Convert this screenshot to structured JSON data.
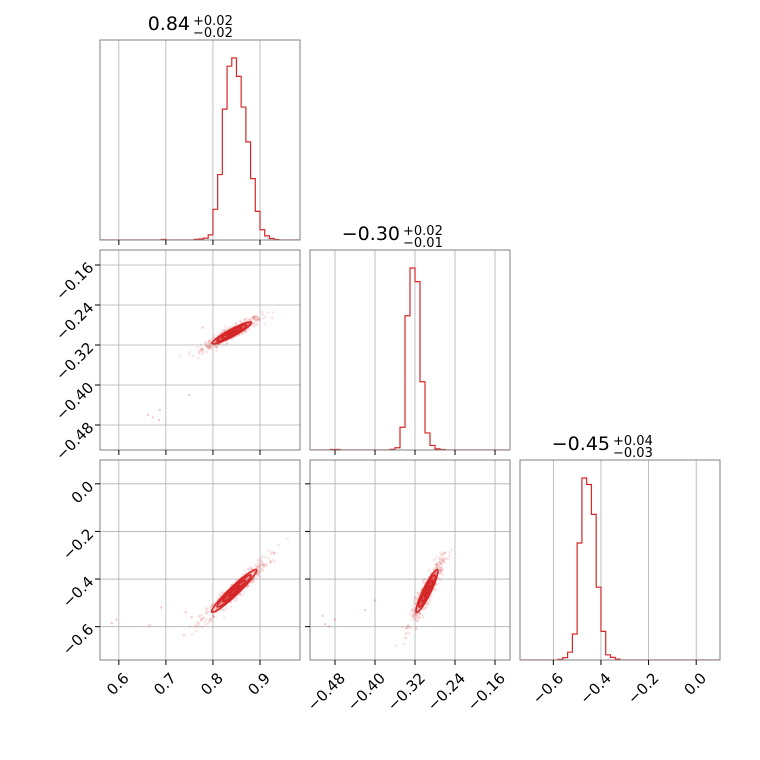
{
  "chart_data": {
    "type": "corner",
    "color": "#d62728",
    "n_params": 3,
    "parameters": [
      {
        "title": {
          "median": "0.84",
          "plus": "+0.02",
          "minus": "−0.02"
        },
        "range": [
          0.56,
          0.985
        ],
        "ticks": [
          0.6,
          0.7,
          0.8,
          0.9
        ],
        "tick_labels": [
          "0.6",
          "0.7",
          "0.8",
          "0.9"
        ]
      },
      {
        "title": {
          "median": "−0.30",
          "plus": "+0.02",
          "minus": "−0.01"
        },
        "range": [
          -0.53,
          -0.13
        ],
        "ticks": [
          -0.48,
          -0.4,
          -0.32,
          -0.24,
          -0.16
        ],
        "tick_labels": [
          "−0.48",
          "−0.40",
          "−0.32",
          "−0.24",
          "−0.16"
        ]
      },
      {
        "title": {
          "median": "−0.45",
          "plus": "+0.04",
          "minus": "−0.03"
        },
        "range": [
          -0.74,
          0.1
        ],
        "ticks": [
          -0.6,
          -0.4,
          -0.2,
          0.0
        ],
        "tick_labels": [
          "−0.6",
          "−0.4",
          "−0.2",
          "0.0"
        ]
      }
    ],
    "histograms": [
      {
        "bin_edges": [
          0.56,
          0.57,
          0.58,
          0.59,
          0.6,
          0.61,
          0.62,
          0.63,
          0.64,
          0.65,
          0.66,
          0.67,
          0.68,
          0.69,
          0.7,
          0.71,
          0.72,
          0.73,
          0.74,
          0.75,
          0.76,
          0.77,
          0.78,
          0.79,
          0.8,
          0.81,
          0.82,
          0.83,
          0.84,
          0.85,
          0.86,
          0.87,
          0.88,
          0.89,
          0.9,
          0.91,
          0.92,
          0.93,
          0.94,
          0.95,
          0.96,
          0.97,
          0.98,
          0.99
        ],
        "counts": [
          0,
          0,
          0,
          0,
          0,
          0,
          0,
          0,
          0,
          0,
          0,
          0,
          0,
          0.5,
          0,
          0,
          0,
          0,
          0,
          0,
          0.6,
          1,
          1.8,
          5,
          30,
          64,
          128,
          170,
          178,
          160,
          130,
          96,
          60,
          28,
          10,
          4,
          1.5,
          0.5,
          0,
          0,
          0,
          0,
          0
        ]
      },
      {
        "bin_edges": [
          -0.53,
          -0.52,
          -0.51,
          -0.5,
          -0.49,
          -0.48,
          -0.47,
          -0.46,
          -0.45,
          -0.44,
          -0.43,
          -0.42,
          -0.41,
          -0.4,
          -0.39,
          -0.38,
          -0.37,
          -0.36,
          -0.35,
          -0.34,
          -0.33,
          -0.32,
          -0.31,
          -0.3,
          -0.29,
          -0.28,
          -0.27,
          -0.26,
          -0.25,
          -0.24,
          -0.23,
          -0.22,
          -0.21,
          -0.2,
          -0.19,
          -0.18,
          -0.17,
          -0.16,
          -0.15,
          -0.14,
          -0.13
        ],
        "counts": [
          0,
          0,
          0,
          0,
          0.5,
          0.5,
          0,
          0,
          0,
          0,
          0,
          0,
          0,
          0,
          0,
          0,
          0.6,
          2,
          20,
          118,
          160,
          148,
          60,
          15,
          4,
          1,
          0.5,
          0,
          0,
          0,
          0,
          0,
          0,
          0,
          0,
          0,
          0,
          0,
          0,
          0
        ]
      },
      {
        "bin_edges": [
          -0.74,
          -0.72,
          -0.7,
          -0.68,
          -0.66,
          -0.64,
          -0.62,
          -0.6,
          -0.58,
          -0.56,
          -0.54,
          -0.52,
          -0.5,
          -0.48,
          -0.46,
          -0.44,
          -0.42,
          -0.4,
          -0.38,
          -0.36,
          -0.34,
          -0.32,
          -0.3,
          -0.28,
          -0.26,
          -0.24,
          -0.22,
          -0.2,
          -0.18,
          -0.16,
          -0.14,
          -0.12,
          -0.1,
          -0.08,
          -0.06,
          -0.04,
          -0.02,
          0.0,
          0.02,
          0.04,
          0.06,
          0.08,
          0.1
        ],
        "counts": [
          0,
          0,
          0,
          0,
          0,
          0,
          0,
          0,
          0.5,
          1.8,
          6,
          20,
          90,
          140,
          135,
          112,
          56,
          22,
          4,
          2,
          0.7,
          0,
          0,
          0,
          0,
          0,
          0,
          0,
          0,
          0,
          0,
          0,
          0,
          0,
          0,
          0,
          0,
          0,
          0,
          0,
          0,
          0
        ]
      }
    ],
    "pairs": [
      {
        "x_param": 0,
        "y_param": 1,
        "mean": [
          0.84,
          -0.296
        ],
        "sigma": [
          0.021,
          0.011
        ],
        "correlation": 0.93,
        "outliers": [
          [
            0.662,
            -0.46
          ],
          [
            0.672,
            -0.465
          ],
          [
            0.685,
            -0.47
          ],
          [
            0.687,
            -0.45
          ],
          [
            0.75,
            -0.42
          ],
          [
            0.778,
            -0.285
          ]
        ]
      },
      {
        "x_param": 0,
        "y_param": 2,
        "mean": [
          0.845,
          -0.45
        ],
        "sigma": [
          0.024,
          0.045
        ],
        "correlation": 0.96,
        "outliers": [
          [
            0.585,
            -0.585
          ],
          [
            0.595,
            -0.57
          ],
          [
            0.665,
            -0.595
          ],
          [
            0.69,
            -0.52
          ],
          [
            0.742,
            -0.54
          ],
          [
            0.755,
            -0.56
          ]
        ]
      },
      {
        "x_param": 1,
        "y_param": 2,
        "mean": [
          -0.296,
          -0.45
        ],
        "sigma": [
          0.011,
          0.045
        ],
        "correlation": 0.92,
        "outliers": [
          [
            -0.505,
            -0.555
          ],
          [
            -0.5,
            -0.59
          ],
          [
            -0.492,
            -0.6
          ],
          [
            -0.48,
            -0.57
          ],
          [
            -0.42,
            -0.53
          ],
          [
            -0.4,
            -0.49
          ]
        ]
      }
    ],
    "sigma_levels": [
      0.5,
      1.0,
      1.5,
      2.0
    ],
    "grid": true
  }
}
